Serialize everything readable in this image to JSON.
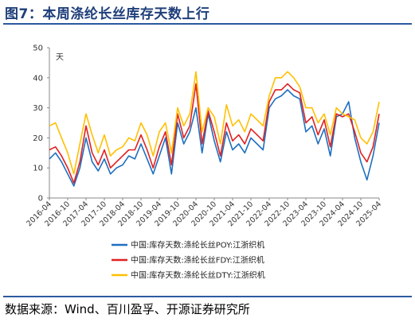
{
  "figure": {
    "title": "图7：本周涤纶长丝库存天数上行",
    "source": "数据来源：Wind、百川盈孚、开源证券研究所"
  },
  "chart_data": {
    "type": "line",
    "unit_label": "天",
    "ylim": [
      0,
      50
    ],
    "yticks": [
      0,
      10,
      20,
      30,
      40,
      50
    ],
    "xlim": [
      "2016-04",
      "2025-04"
    ],
    "xticks": [
      "2016-04",
      "2016-10",
      "2017-04",
      "2017-10",
      "2018-04",
      "2018-10",
      "2019-04",
      "2019-10",
      "2020-04",
      "2020-10",
      "2021-04",
      "2021-10",
      "2022-04",
      "2022-10",
      "2023-04",
      "2023-10",
      "2024-04",
      "2024-10",
      "2025-04"
    ],
    "grid": false,
    "legend_position": "bottom",
    "x": [
      "2016-04",
      "2016-06",
      "2016-08",
      "2016-10",
      "2016-12",
      "2017-02",
      "2017-04",
      "2017-06",
      "2017-08",
      "2017-10",
      "2017-12",
      "2018-02",
      "2018-04",
      "2018-06",
      "2018-08",
      "2018-10",
      "2018-12",
      "2019-02",
      "2019-04",
      "2019-06",
      "2019-08",
      "2019-10",
      "2019-12",
      "2020-02",
      "2020-04",
      "2020-06",
      "2020-08",
      "2020-10",
      "2020-12",
      "2021-02",
      "2021-04",
      "2021-06",
      "2021-08",
      "2021-10",
      "2021-12",
      "2022-02",
      "2022-04",
      "2022-06",
      "2022-08",
      "2022-10",
      "2022-12",
      "2023-02",
      "2023-04",
      "2023-06",
      "2023-08",
      "2023-10",
      "2023-12",
      "2024-02",
      "2024-04",
      "2024-06",
      "2024-08",
      "2024-10",
      "2024-12",
      "2025-02",
      "2025-04"
    ],
    "series": [
      {
        "name": "中国:库存天数:涤纶长丝POY:江浙织机",
        "color": "#1f6fc0",
        "values": [
          13,
          15,
          12,
          8,
          4,
          10,
          20,
          12,
          9,
          13,
          8,
          10,
          11,
          14,
          13,
          18,
          13,
          8,
          14,
          20,
          8,
          25,
          18,
          22,
          30,
          15,
          28,
          19,
          12,
          22,
          16,
          18,
          15,
          20,
          18,
          16,
          30,
          33,
          34,
          36,
          34,
          33,
          22,
          24,
          18,
          23,
          14,
          27,
          28,
          32,
          20,
          12,
          6,
          14,
          25
        ]
      },
      {
        "name": "中国:库存天数:涤纶长丝FDY:江浙织机",
        "color": "#e02020",
        "values": [
          16,
          17,
          14,
          10,
          5,
          12,
          24,
          15,
          11,
          16,
          10,
          12,
          14,
          16,
          16,
          21,
          16,
          10,
          17,
          22,
          11,
          28,
          20,
          24,
          38,
          18,
          29,
          22,
          14,
          25,
          19,
          21,
          18,
          23,
          21,
          19,
          32,
          36,
          36,
          38,
          36,
          35,
          25,
          27,
          21,
          26,
          17,
          28,
          27,
          28,
          22,
          15,
          12,
          17,
          28
        ]
      },
      {
        "name": "中国:库存天数:涤纶长丝DTY:江浙织机",
        "color": "#ffc000",
        "values": [
          24,
          25,
          20,
          15,
          8,
          18,
          28,
          21,
          15,
          21,
          14,
          16,
          17,
          20,
          19,
          25,
          21,
          14,
          22,
          25,
          15,
          30,
          24,
          28,
          42,
          22,
          30,
          27,
          18,
          31,
          24,
          26,
          22,
          28,
          26,
          24,
          34,
          40,
          40,
          42,
          40,
          37,
          30,
          30,
          25,
          28,
          21,
          30,
          28,
          27,
          26,
          20,
          18,
          22,
          32
        ]
      }
    ]
  }
}
